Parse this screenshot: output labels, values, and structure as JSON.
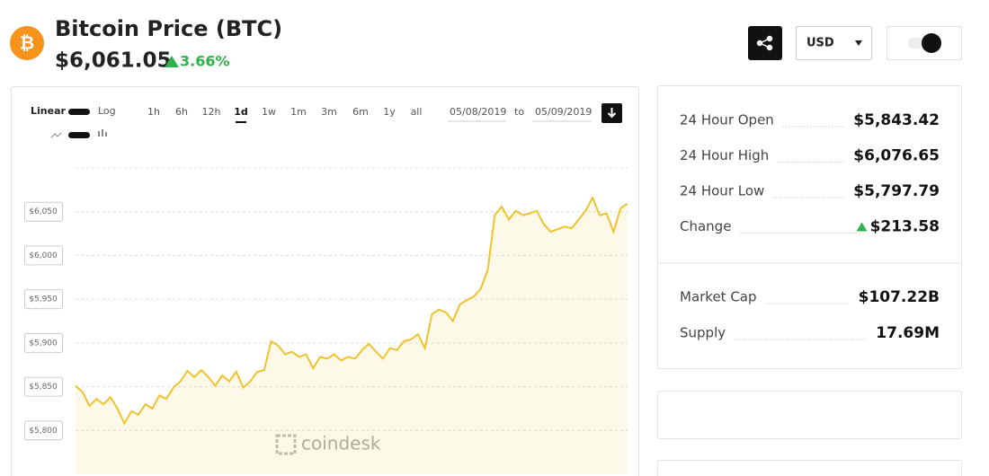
{
  "header": {
    "title": "Bitcoin Price (BTC)",
    "price": "$6,061.05",
    "change_pct": "3.66%"
  },
  "controls": {
    "scale_options": [
      "Linear",
      "Log"
    ],
    "ranges": [
      "1h",
      "6h",
      "12h",
      "1d",
      "1w",
      "1m",
      "3m",
      "6m",
      "1y",
      "all"
    ],
    "start_date": "05/08/2019",
    "date_separator": "to",
    "end_date": "05/09/2019",
    "currency": "USD"
  },
  "chart_data": {
    "type": "line",
    "color": "#f0c22b",
    "grid": true,
    "watermark": "coindesk",
    "ylim": [
      5750,
      6100
    ],
    "yticks": [
      {
        "value": 5800,
        "label": "$5,800"
      },
      {
        "value": 5850,
        "label": "$5,850"
      },
      {
        "value": 5900,
        "label": "$5,900"
      },
      {
        "value": 5950,
        "label": "$5,950"
      },
      {
        "value": 6000,
        "label": "$6,000"
      },
      {
        "value": 6050,
        "label": "$6,050"
      }
    ],
    "values": [
      5851,
      5844,
      5828,
      5836,
      5830,
      5838,
      5825,
      5808,
      5822,
      5818,
      5830,
      5825,
      5840,
      5836,
      5849,
      5856,
      5868,
      5861,
      5869,
      5861,
      5851,
      5863,
      5856,
      5867,
      5849,
      5856,
      5867,
      5869,
      5902,
      5897,
      5887,
      5890,
      5884,
      5887,
      5871,
      5884,
      5882,
      5887,
      5880,
      5884,
      5882,
      5892,
      5899,
      5890,
      5882,
      5894,
      5892,
      5902,
      5904,
      5910,
      5894,
      5933,
      5938,
      5935,
      5925,
      5944,
      5949,
      5953,
      5962,
      5984,
      6046,
      6056,
      6041,
      6051,
      6046,
      6048,
      6051,
      6036,
      6027,
      6030,
      6033,
      6031,
      6041,
      6051,
      6066,
      6046,
      6048,
      6027,
      6054,
      6059
    ]
  },
  "stats": {
    "rows": [
      {
        "label": "24 Hour Open",
        "value": "$5,843.42"
      },
      {
        "label": "24 Hour High",
        "value": "$6,076.65"
      },
      {
        "label": "24 Hour Low",
        "value": "$5,797.79"
      },
      {
        "label": "Change",
        "value": "$213.58"
      }
    ],
    "market_rows": [
      {
        "label": "Market Cap",
        "value": "$107.22B"
      },
      {
        "label": "Supply",
        "value": "17.69M"
      }
    ]
  }
}
